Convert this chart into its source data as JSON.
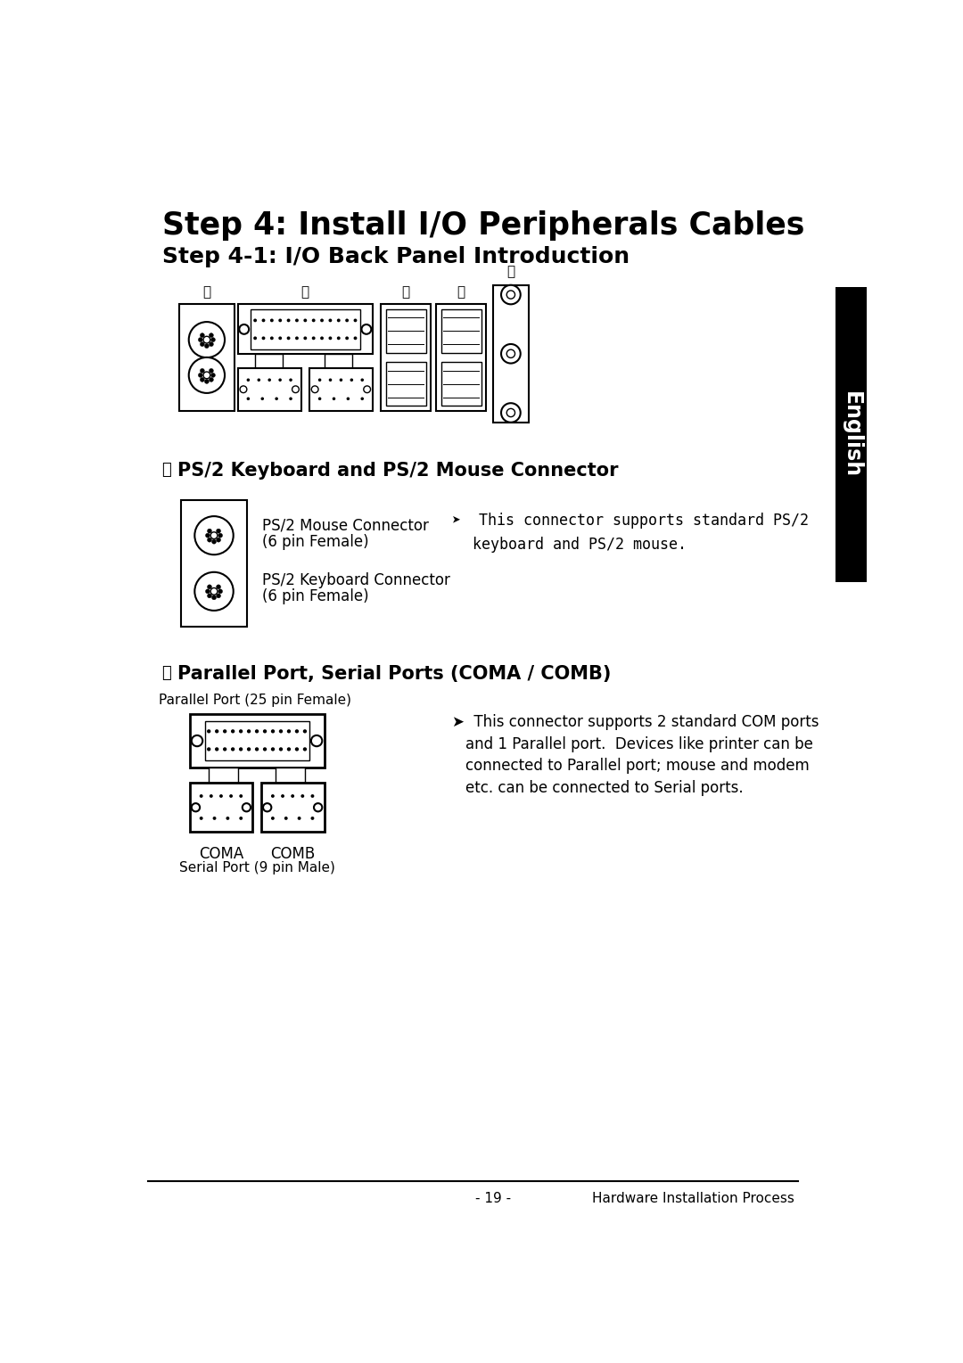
{
  "title1": "Step 4: Install I/O Peripherals Cables",
  "title2": "Step 4-1: I/O Back Panel Introduction",
  "section_a_title": "PS/2 Keyboard and PS/2 Mouse Connector",
  "section_a_label": "ⓐ",
  "section_b_title": "Parallel Port, Serial Ports (COMA / COMB)",
  "section_b_label": "ⓑ",
  "ps2_mouse_label1": "PS/2 Mouse Connector",
  "ps2_mouse_label2": "(6 pin Female)",
  "ps2_keyboard_label1": "PS/2 Keyboard Connector",
  "ps2_keyboard_label2": "(6 pin Female)",
  "parallel_label": "Parallel Port (25 pin Female)",
  "coma_label": "COMA",
  "comb_label": "COMB",
  "serial_label": "Serial Port (9 pin Male)",
  "footer_left": "- 19 -",
  "footer_right": "Hardware Installation Process",
  "bg_color": "#ffffff",
  "sidebar_text": "English"
}
